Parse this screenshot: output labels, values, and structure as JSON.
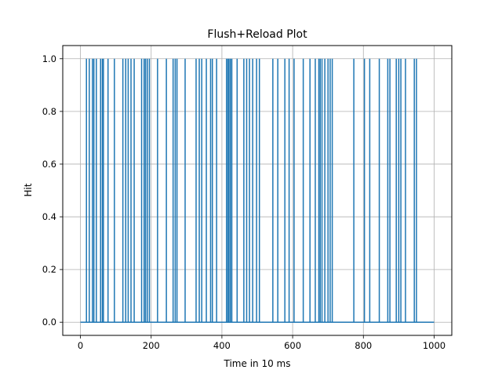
{
  "chart_data": {
    "type": "line",
    "title": "Flush+Reload Plot",
    "xlabel": "Time in 10 ms",
    "ylabel": "Hit",
    "xlim": [
      -50,
      1050
    ],
    "ylim": [
      -0.05,
      1.05
    ],
    "xticks": [
      0,
      200,
      400,
      600,
      800,
      1000
    ],
    "xtick_labels": [
      "0",
      "200",
      "400",
      "600",
      "800",
      "1000"
    ],
    "yticks": [
      0.0,
      0.2,
      0.4,
      0.6,
      0.8,
      1.0
    ],
    "ytick_labels": [
      "0.0",
      "0.2",
      "0.4",
      "0.6",
      "0.8",
      "1.0"
    ],
    "grid": true,
    "legend": "none",
    "line_color": "#1f77b4",
    "x_range": [
      0,
      1000
    ],
    "baseline": 0,
    "hit_value": 1,
    "hit_times": [
      17,
      25,
      34,
      38,
      45,
      57,
      62,
      65,
      78,
      96,
      120,
      128,
      135,
      143,
      152,
      173,
      180,
      184,
      189,
      195,
      218,
      243,
      262,
      268,
      273,
      296,
      327,
      336,
      343,
      356,
      368,
      373,
      385,
      413,
      417,
      420,
      424,
      428,
      443,
      462,
      470,
      478,
      487,
      498,
      506,
      544,
      558,
      578,
      590,
      604,
      630,
      649,
      664,
      674,
      678,
      683,
      691,
      700,
      706,
      712,
      773,
      803,
      818,
      845,
      869,
      875,
      893,
      900,
      906,
      919,
      944,
      950
    ]
  }
}
